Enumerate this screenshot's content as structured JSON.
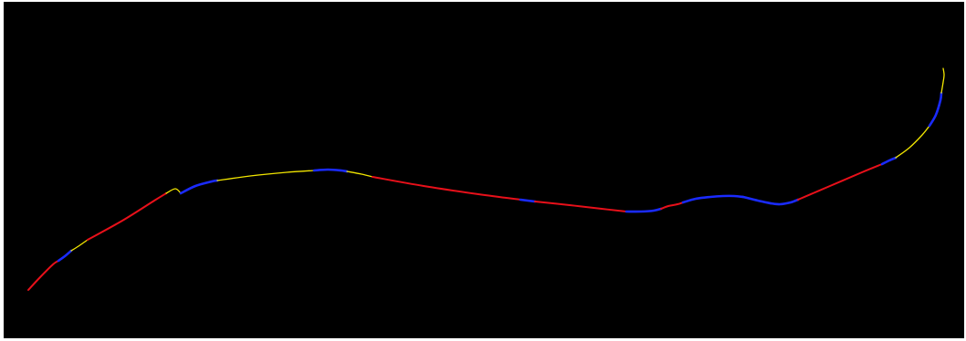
{
  "diagram": {
    "background_color": "#000000",
    "frame_color": "#ffffff",
    "segment_colors": {
      "red": "#e8101a",
      "yellow": "#f2e600",
      "blue": "#1a2bff"
    },
    "segments": [
      {
        "color": "red"
      },
      {
        "color": "blue"
      },
      {
        "color": "yellow"
      },
      {
        "color": "red"
      },
      {
        "color": "yellow"
      },
      {
        "color": "blue"
      },
      {
        "color": "yellow"
      },
      {
        "color": "blue"
      },
      {
        "color": "yellow"
      },
      {
        "color": "red"
      },
      {
        "color": "blue"
      },
      {
        "color": "red"
      },
      {
        "color": "blue"
      },
      {
        "color": "red"
      },
      {
        "color": "blue"
      },
      {
        "color": "blue"
      },
      {
        "color": "blue"
      },
      {
        "color": "red"
      },
      {
        "color": "blue"
      },
      {
        "color": "yellow"
      },
      {
        "color": "blue"
      },
      {
        "color": "yellow"
      }
    ]
  }
}
